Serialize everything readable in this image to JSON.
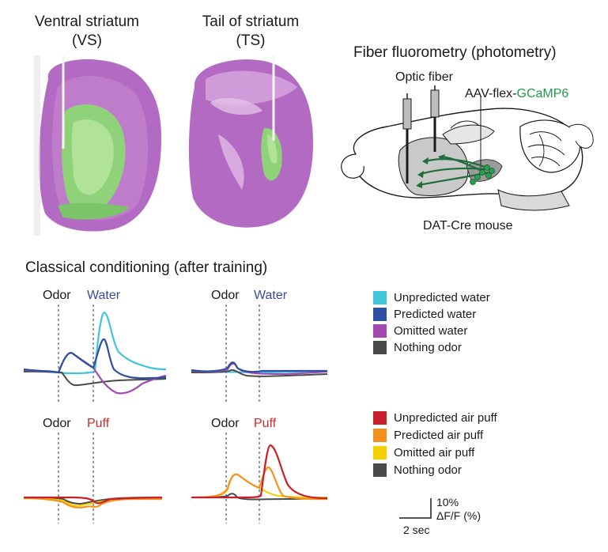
{
  "top": {
    "vs_title": "Ventral striatum",
    "vs_abbr": "(VS)",
    "ts_title": "Tail of striatum",
    "ts_abbr": "(TS)",
    "fiber_title": "Fiber fluorometry (photometry)",
    "optic_fiber": "Optic fiber",
    "aav_prefix": "AAV-flex-",
    "aav_gene": "GCaMP6",
    "mouse": "DAT-Cre mouse"
  },
  "conditioning_title": "Classical conditioning (after training)",
  "water_panels": {
    "odor": "Odor",
    "event": "Water"
  },
  "puff_panels": {
    "odor": "Odor",
    "event": "Puff"
  },
  "legend_water": [
    {
      "label": "Unpredicted water",
      "color": "#3fc6d8"
    },
    {
      "label": "Predicted water",
      "color": "#2f4fa2"
    },
    {
      "label": "Omitted water",
      "color": "#a24aae"
    },
    {
      "label": "Nothing odor",
      "color": "#4a4a4a"
    }
  ],
  "legend_puff": [
    {
      "label": "Unpredicted air puff",
      "color": "#c8202a"
    },
    {
      "label": "Predicted air puff",
      "color": "#f4911e"
    },
    {
      "label": "Omitted air puff",
      "color": "#f5d000"
    },
    {
      "label": "Nothing odor",
      "color": "#4a4a4a"
    }
  ],
  "scale": {
    "y_value": "10%",
    "y_unit": "ΔF/F (%)",
    "x_value": "2 sec"
  },
  "colors": {
    "water": "#3b4a9a",
    "puff": "#cc2a2a",
    "gcamp": "#1f9a4a"
  }
}
